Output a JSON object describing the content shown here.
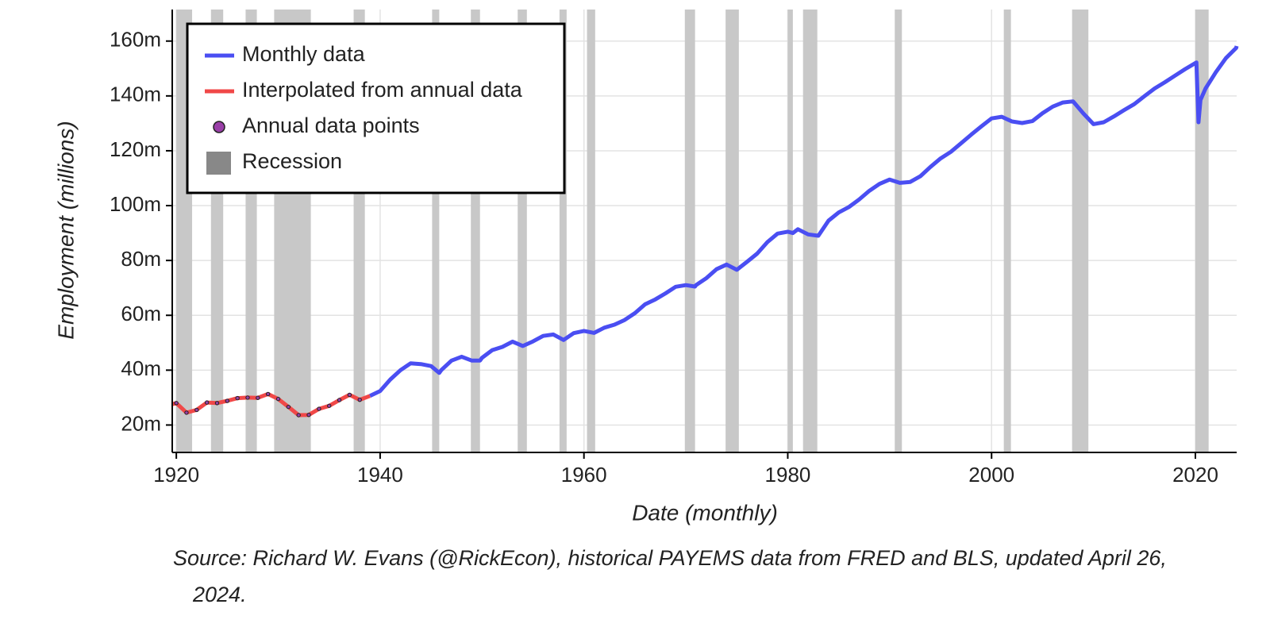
{
  "chart_data": {
    "type": "line",
    "xlabel": "Date (monthly)",
    "ylabel": "Employment (millions)",
    "source": "Source: Richard W. Evans (@RickEcon), historical PAYEMS data from FRED and BLS, updated April 26, 2024.",
    "xlim": [
      1919.6,
      2024.05
    ],
    "ylim": [
      10,
      171.5
    ],
    "xticks": [
      1920,
      1940,
      1960,
      1980,
      2000,
      2020
    ],
    "yticks": [
      {
        "value": 20,
        "label": "20m"
      },
      {
        "value": 40,
        "label": "40m"
      },
      {
        "value": 60,
        "label": "60m"
      },
      {
        "value": 80,
        "label": "80m"
      },
      {
        "value": 100,
        "label": "100m"
      },
      {
        "value": 120,
        "label": "120m"
      },
      {
        "value": 140,
        "label": "140m"
      },
      {
        "value": 160,
        "label": "160m"
      }
    ],
    "grid": true,
    "recession": {
      "name": "Recession",
      "color": "#c8c8c8",
      "periods": [
        [
          1920.0,
          1921.55
        ],
        [
          1923.4,
          1924.6
        ],
        [
          1926.8,
          1927.9
        ],
        [
          1929.6,
          1933.2
        ],
        [
          1937.4,
          1938.5
        ],
        [
          1945.1,
          1945.8
        ],
        [
          1948.9,
          1949.8
        ],
        [
          1953.5,
          1954.4
        ],
        [
          1957.6,
          1958.3
        ],
        [
          1960.3,
          1961.1
        ],
        [
          1969.9,
          1970.9
        ],
        [
          1973.9,
          1975.2
        ],
        [
          1980.0,
          1980.5
        ],
        [
          1981.5,
          1982.9
        ],
        [
          1990.5,
          1991.2
        ],
        [
          2001.2,
          2001.9
        ],
        [
          2007.9,
          2009.5
        ],
        [
          2020.0,
          2021.3
        ]
      ]
    },
    "series": [
      {
        "name": "Monthly data",
        "color": "#4a4ef2",
        "style": "line",
        "x": [
          1939,
          1940,
          1941,
          1942,
          1943,
          1944,
          1945,
          1945.8,
          1946,
          1947,
          1948,
          1949,
          1949.8,
          1950,
          1951,
          1952,
          1953,
          1954,
          1955,
          1956,
          1957,
          1958,
          1959,
          1960,
          1961,
          1962,
          1963,
          1964,
          1965,
          1966,
          1967,
          1968,
          1969,
          1970,
          1970.9,
          1971,
          1972,
          1973,
          1974,
          1975,
          1976,
          1977,
          1978,
          1979,
          1980,
          1980.5,
          1981,
          1982,
          1983,
          1984,
          1985,
          1986,
          1987,
          1988,
          1989,
          1990,
          1991,
          1992,
          1993,
          1994,
          1995,
          1996,
          1997,
          1998,
          1999,
          2000,
          2001,
          2002,
          2003,
          2004,
          2005,
          2006,
          2007,
          2008,
          2009,
          2010,
          2011,
          2012,
          2013,
          2014,
          2015,
          2016,
          2017,
          2018,
          2019,
          2020.1,
          2020.3,
          2020.5,
          2021,
          2022,
          2023,
          2024,
          2024.05
        ],
        "values": [
          30.6,
          32.4,
          36.6,
          40,
          42.5,
          42.2,
          41.5,
          39,
          40,
          43.5,
          44.9,
          43.5,
          43.5,
          44.5,
          47.3,
          48.5,
          50.4,
          48.8,
          50.5,
          52.5,
          53,
          51,
          53.5,
          54.3,
          53.6,
          55.5,
          56.6,
          58.3,
          60.8,
          64,
          65.8,
          68,
          70.4,
          71,
          70.5,
          71,
          73.5,
          76.8,
          78.5,
          76.6,
          79.5,
          82.5,
          86.7,
          89.8,
          90.5,
          90,
          91.4,
          89.5,
          89,
          94.5,
          97.5,
          99.5,
          102.2,
          105.4,
          107.9,
          109.5,
          108.3,
          108.6,
          110.7,
          114.1,
          117.2,
          119.6,
          122.7,
          125.9,
          128.9,
          131.8,
          132.4,
          130.7,
          130.1,
          130.8,
          133.7,
          136.1,
          137.6,
          138,
          133.6,
          129.7,
          130.4,
          132.5,
          134.8,
          137,
          139.9,
          142.7,
          145,
          147.4,
          149.8,
          152.2,
          130.4,
          138.5,
          142.7,
          148.6,
          153.8,
          157.5,
          158.2
        ]
      },
      {
        "name": "Interpolated from annual data",
        "color": "#f04848",
        "style": "line",
        "x": [
          1919.6,
          1920,
          1921,
          1922,
          1923,
          1924,
          1925,
          1926,
          1927,
          1928,
          1929,
          1930,
          1931,
          1932,
          1933,
          1934,
          1935,
          1936,
          1937,
          1938,
          1939
        ],
        "values": [
          27.6,
          28,
          24.5,
          25.5,
          28.2,
          28,
          28.8,
          29.8,
          30,
          29.9,
          31.3,
          29.5,
          26.6,
          23.6,
          23.7,
          25.9,
          27,
          29.1,
          31,
          29.2,
          30.6
        ]
      },
      {
        "name": "Annual data points",
        "color": "#9a3fa8",
        "style": "points",
        "x": [
          1920,
          1921,
          1922,
          1923,
          1924,
          1925,
          1926,
          1927,
          1928,
          1929,
          1930,
          1931,
          1932,
          1933,
          1934,
          1935,
          1936,
          1937,
          1938
        ],
        "values": [
          28,
          24.5,
          25.5,
          28.2,
          28,
          28.8,
          29.8,
          30,
          29.9,
          31.3,
          29.5,
          26.6,
          23.6,
          23.7,
          25.9,
          27,
          29.1,
          31,
          29.2
        ]
      }
    ]
  }
}
